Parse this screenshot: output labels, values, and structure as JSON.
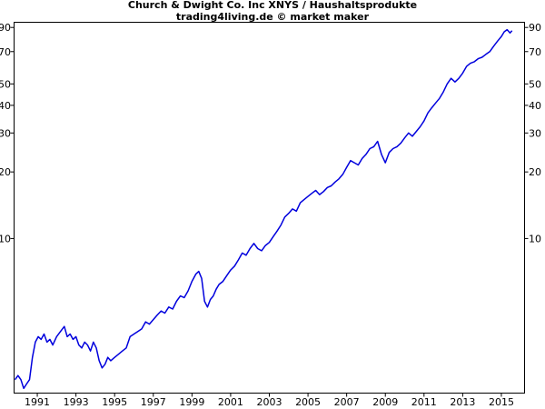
{
  "chart_data": {
    "type": "line",
    "title": "Church & Dwight Co. Inc XNYS / Haushaltsprodukte",
    "subtitle": "trading4living.de © market maker",
    "xlabel": "",
    "ylabel": "",
    "y_scale": "log",
    "xlim": [
      1989.8,
      2016.2
    ],
    "ylim": [
      2.0,
      95
    ],
    "grid": false,
    "legend": "none",
    "x_ticks": [
      "1991",
      "1993",
      "1995",
      "1997",
      "1999",
      "2001",
      "2003",
      "2005",
      "2007",
      "2009",
      "2011",
      "2013",
      "2015"
    ],
    "y_ticks_left": [
      "10",
      "20",
      "30",
      "40",
      "50",
      "70",
      "90"
    ],
    "y_ticks_right": [
      "10",
      "20",
      "30",
      "40",
      "50",
      "70",
      "90"
    ],
    "line_color": "#0000dd",
    "series": [
      {
        "x": [
          1989.85,
          1990.0,
          1990.15,
          1990.3,
          1990.45,
          1990.6,
          1990.75,
          1990.9,
          1991.05,
          1991.2,
          1991.35,
          1991.5,
          1991.65,
          1991.8,
          1992.0,
          1992.2,
          1992.4,
          1992.55,
          1992.7,
          1992.85,
          1993.0,
          1993.15,
          1993.3,
          1993.45,
          1993.6,
          1993.75,
          1993.9,
          1994.05,
          1994.2,
          1994.35,
          1994.5,
          1994.65,
          1994.8,
          1995.0,
          1995.2,
          1995.4,
          1995.6,
          1995.8,
          1996.0,
          1996.2,
          1996.4,
          1996.6,
          1996.8,
          1997.0,
          1997.2,
          1997.4,
          1997.6,
          1997.8,
          1998.0,
          1998.2,
          1998.4,
          1998.6,
          1998.8,
          1999.0,
          1999.2,
          1999.35,
          1999.5,
          1999.65,
          1999.8,
          1999.95,
          2000.1,
          2000.25,
          2000.4,
          2000.6,
          2000.8,
          2001.0,
          2001.2,
          2001.4,
          2001.6,
          2001.8,
          2002.0,
          2002.2,
          2002.4,
          2002.6,
          2002.8,
          2003.0,
          2003.2,
          2003.4,
          2003.6,
          2003.8,
          2004.0,
          2004.2,
          2004.4,
          2004.6,
          2004.8,
          2005.0,
          2005.2,
          2005.4,
          2005.6,
          2005.8,
          2006.0,
          2006.2,
          2006.4,
          2006.6,
          2006.8,
          2007.0,
          2007.2,
          2007.4,
          2007.6,
          2007.8,
          2008.0,
          2008.2,
          2008.4,
          2008.6,
          2008.8,
          2009.0,
          2009.2,
          2009.4,
          2009.6,
          2009.8,
          2010.0,
          2010.2,
          2010.4,
          2010.6,
          2010.8,
          2011.0,
          2011.2,
          2011.4,
          2011.6,
          2011.8,
          2012.0,
          2012.2,
          2012.4,
          2012.6,
          2012.8,
          2013.0,
          2013.2,
          2013.4,
          2013.6,
          2013.8,
          2014.0,
          2014.2,
          2014.4,
          2014.6,
          2014.8,
          2015.0,
          2015.15,
          2015.3,
          2015.45,
          2015.55
        ],
        "values": [
          2.3,
          2.4,
          2.3,
          2.1,
          2.2,
          2.3,
          2.9,
          3.4,
          3.6,
          3.5,
          3.7,
          3.4,
          3.5,
          3.3,
          3.6,
          3.8,
          4.0,
          3.6,
          3.7,
          3.5,
          3.6,
          3.3,
          3.2,
          3.4,
          3.3,
          3.1,
          3.4,
          3.2,
          2.8,
          2.6,
          2.7,
          2.9,
          2.8,
          2.9,
          3.0,
          3.1,
          3.2,
          3.6,
          3.7,
          3.8,
          3.9,
          4.2,
          4.1,
          4.3,
          4.5,
          4.7,
          4.6,
          4.9,
          4.8,
          5.2,
          5.5,
          5.4,
          5.8,
          6.4,
          6.9,
          7.1,
          6.6,
          5.2,
          4.9,
          5.3,
          5.5,
          5.9,
          6.2,
          6.4,
          6.8,
          7.2,
          7.5,
          8.0,
          8.6,
          8.4,
          9.0,
          9.5,
          9.0,
          8.8,
          9.3,
          9.6,
          10.2,
          10.8,
          11.5,
          12.5,
          13.0,
          13.6,
          13.3,
          14.5,
          15.0,
          15.5,
          16.0,
          16.5,
          15.8,
          16.3,
          17.0,
          17.3,
          18.0,
          18.6,
          19.5,
          21.0,
          22.5,
          22.0,
          21.5,
          23.0,
          24.0,
          25.5,
          26.0,
          27.5,
          24.0,
          22.0,
          24.5,
          25.5,
          26.0,
          27.0,
          28.5,
          30.0,
          29.0,
          30.5,
          32.0,
          34.0,
          37.0,
          39.0,
          41.0,
          43.0,
          46.0,
          50.0,
          53.0,
          51.0,
          53.0,
          56.0,
          60.0,
          62.0,
          63.0,
          65.0,
          66.0,
          68.0,
          70.0,
          74.0,
          78.0,
          82.0,
          86.0,
          88.0,
          85.0,
          87.0
        ]
      }
    ]
  }
}
